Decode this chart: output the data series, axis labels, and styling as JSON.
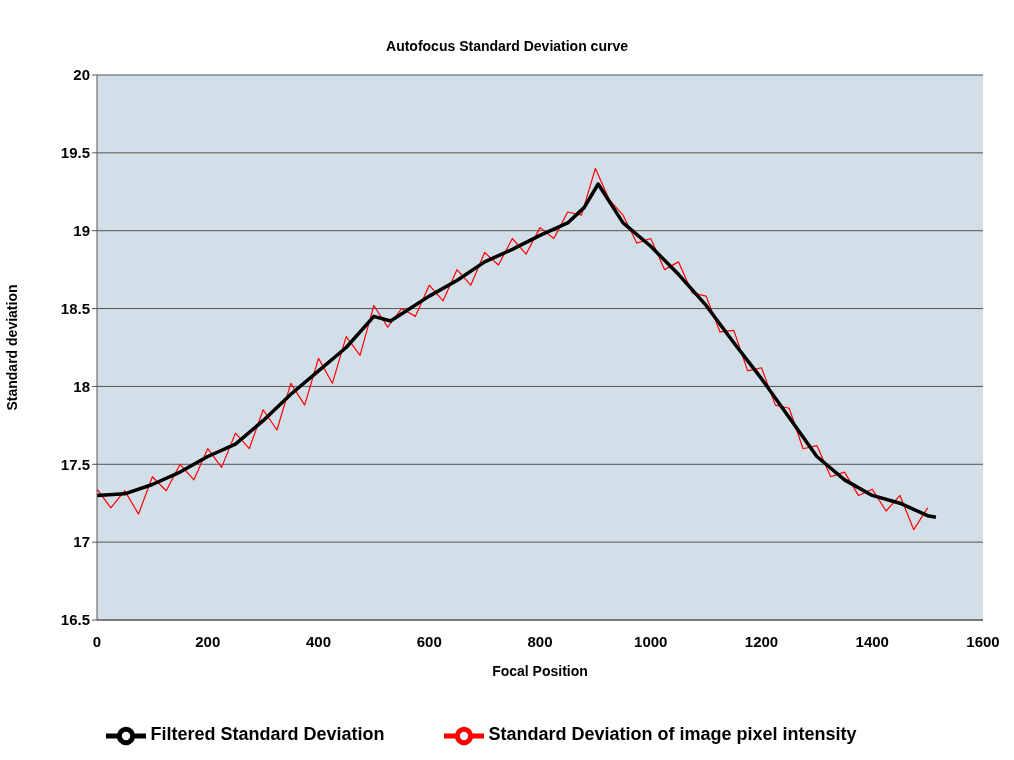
{
  "chart_data": {
    "type": "line",
    "title": "Autofocus Standard Deviation curve",
    "xlabel": "Focal Position",
    "ylabel": "Standard deviation",
    "xlim": [
      0,
      1600
    ],
    "xticks": [
      0,
      200,
      400,
      600,
      800,
      1000,
      1200,
      1400,
      1600
    ],
    "ylim": [
      16.5,
      20
    ],
    "yticks": [
      16.5,
      17,
      17.5,
      18,
      18.5,
      19,
      19.5,
      20
    ],
    "grid": "y",
    "legend": "bottom",
    "marker": "none",
    "line_style": "solid",
    "series": [
      {
        "name": "Filtered Standard Deviation",
        "color": "#000000",
        "x": [
          0,
          50,
          100,
          150,
          200,
          250,
          300,
          350,
          400,
          450,
          500,
          530,
          600,
          650,
          700,
          750,
          800,
          850,
          880,
          905,
          950,
          1000,
          1050,
          1100,
          1150,
          1200,
          1250,
          1300,
          1350,
          1400,
          1450,
          1500,
          1515
        ],
        "values": [
          17.3,
          17.31,
          17.37,
          17.45,
          17.55,
          17.63,
          17.78,
          17.95,
          18.1,
          18.25,
          18.45,
          18.42,
          18.58,
          18.68,
          18.8,
          18.88,
          18.97,
          19.05,
          19.15,
          19.3,
          19.05,
          18.9,
          18.72,
          18.52,
          18.28,
          18.05,
          17.8,
          17.55,
          17.4,
          17.3,
          17.25,
          17.17,
          17.16
        ]
      },
      {
        "name": "Standard Deviation of image pixel intensity",
        "color": "#ff0000",
        "x": [
          0,
          25,
          50,
          75,
          100,
          125,
          150,
          175,
          200,
          225,
          250,
          275,
          300,
          325,
          350,
          375,
          400,
          425,
          450,
          475,
          500,
          525,
          550,
          575,
          600,
          625,
          650,
          675,
          700,
          725,
          750,
          775,
          800,
          825,
          850,
          875,
          900,
          925,
          950,
          975,
          1000,
          1025,
          1050,
          1075,
          1100,
          1125,
          1150,
          1175,
          1200,
          1225,
          1250,
          1275,
          1300,
          1325,
          1350,
          1375,
          1400,
          1425,
          1450,
          1475,
          1500
        ],
        "values": [
          17.34,
          17.22,
          17.33,
          17.18,
          17.42,
          17.33,
          17.5,
          17.4,
          17.6,
          17.48,
          17.7,
          17.6,
          17.85,
          17.72,
          18.02,
          17.88,
          18.18,
          18.02,
          18.32,
          18.2,
          18.52,
          18.38,
          18.5,
          18.45,
          18.65,
          18.55,
          18.75,
          18.65,
          18.86,
          18.78,
          18.95,
          18.85,
          19.02,
          18.95,
          19.12,
          19.1,
          19.4,
          19.2,
          19.1,
          18.92,
          18.95,
          18.75,
          18.8,
          18.6,
          18.58,
          18.35,
          18.36,
          18.1,
          18.12,
          17.88,
          17.86,
          17.6,
          17.62,
          17.42,
          17.45,
          17.3,
          17.34,
          17.2,
          17.3,
          17.08,
          17.22
        ]
      }
    ]
  }
}
